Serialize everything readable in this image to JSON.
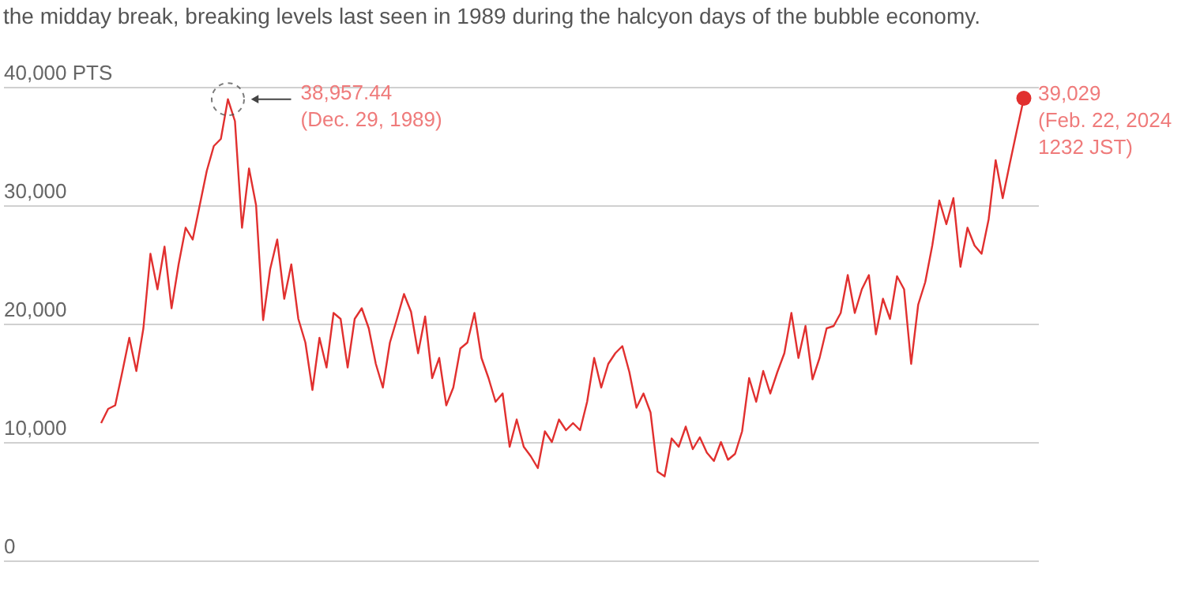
{
  "chart_data": {
    "type": "line",
    "subtitle": "the midday break, breaking levels last seen in 1989 during the halcyon days of the bubble economy.",
    "categories": [
      null,
      null,
      null,
      null,
      null,
      null,
      null,
      null,
      null,
      null,
      null,
      null,
      null,
      null,
      null,
      null,
      null,
      null,
      null,
      null,
      null,
      null,
      null,
      null,
      null,
      null,
      null,
      null,
      null,
      null,
      null,
      null,
      null,
      null,
      null,
      null,
      null,
      null,
      null,
      null,
      null,
      null,
      null,
      null,
      null,
      null,
      null,
      null,
      null,
      null,
      null,
      null,
      null,
      null,
      null,
      null,
      null,
      null,
      null,
      null,
      null,
      null,
      null,
      null,
      null,
      null,
      null,
      null,
      null,
      null,
      null,
      null,
      null,
      null,
      null,
      null,
      null,
      null,
      null,
      null,
      null,
      null,
      null,
      null,
      null,
      null,
      null,
      null,
      null,
      null,
      null,
      null,
      null,
      null,
      null,
      null,
      null,
      null,
      null,
      null,
      null,
      null,
      null,
      null,
      null,
      null,
      null,
      null,
      null,
      null,
      null,
      null,
      null,
      null,
      null,
      null,
      null,
      null,
      null,
      null,
      null,
      null,
      null,
      null,
      null,
      null,
      null,
      null,
      null,
      null,
      null,
      null
    ],
    "series": [
      {
        "color": "#e1302f",
        "values": [
          11600,
          12800,
          13100,
          15900,
          18800,
          16000,
          19600,
          25900,
          22900,
          26500,
          21300,
          25000,
          28100,
          27100,
          30000,
          32900,
          35000,
          35600,
          38957.44,
          37100,
          28100,
          33100,
          30000,
          20300,
          24600,
          27100,
          22100,
          25000,
          20400,
          18400,
          14400,
          18800,
          16300,
          20900,
          20400,
          16300,
          20400,
          21300,
          19600,
          16600,
          14600,
          18400,
          20400,
          22500,
          21000,
          17500,
          20600,
          15400,
          17100,
          13100,
          14600,
          17900,
          18400,
          20900,
          17100,
          15400,
          13400,
          14100,
          9600,
          11900,
          9600,
          8800,
          7800,
          10900,
          10000,
          11900,
          11000,
          11600,
          11000,
          13400,
          17100,
          14600,
          16600,
          17500,
          18100,
          15900,
          12900,
          14100,
          12500,
          7500,
          7100,
          10300,
          9600,
          11300,
          9400,
          10400,
          9100,
          8400,
          10000,
          8500,
          9000,
          10900,
          15400,
          13400,
          16000,
          14100,
          15900,
          17500,
          20900,
          17100,
          19800,
          15300,
          17100,
          19600,
          19800,
          20900,
          24100,
          20900,
          22900,
          24100,
          19100,
          22100,
          20400,
          24000,
          22900,
          16600,
          21600,
          23500,
          26600,
          30400,
          28400,
          30600,
          24800,
          28100,
          26600,
          25900,
          28800,
          33800,
          30600,
          33500,
          36300,
          39029
        ]
      }
    ],
    "ylim": [
      0,
      40000
    ],
    "yticks": [
      0,
      {
        "value": 10000,
        "label": "10,000"
      },
      {
        "value": 20000,
        "label": "20,000"
      },
      {
        "value": 30000,
        "label": "30,000"
      },
      {
        "value": 40000,
        "label": "40,000  PTS"
      }
    ],
    "grid": "y",
    "tick_labels": "y",
    "annotations": [
      "38,957.44\n(Dec. 29, 1989)",
      "39,029\n(Feb. 22, 2024\n1232 JST)"
    ]
  }
}
